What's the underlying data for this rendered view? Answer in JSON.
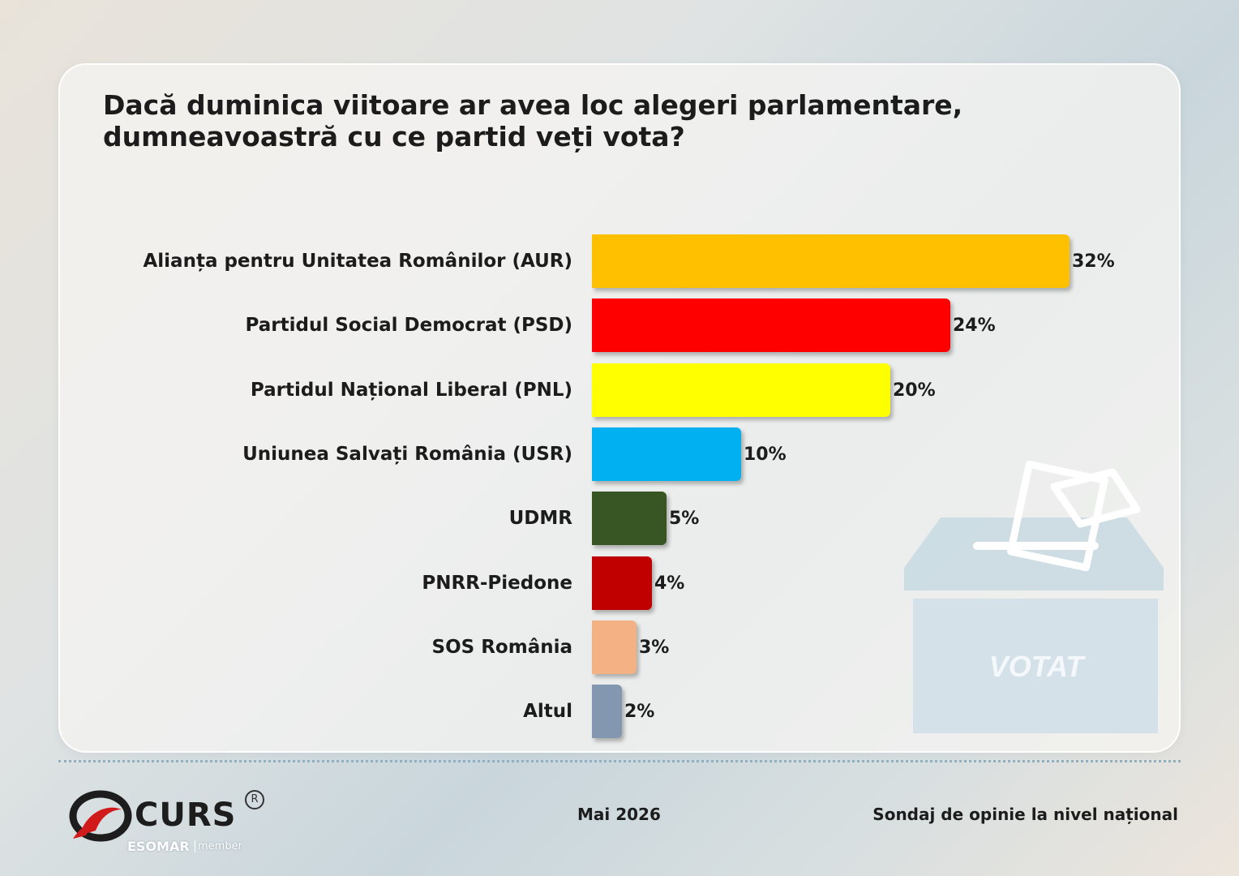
{
  "title_lines": [
    "Dacă duminica viitoare ar avea loc alegeri parlamentare,",
    "dumneavoastră cu ce partid veți vota?"
  ],
  "chart_data": {
    "type": "bar",
    "orientation": "horizontal",
    "title": "Dacă duminica viitoare ar avea loc alegeri parlamentare, dumneavoastră cu ce partid veți vota?",
    "categories": [
      "Alianța pentru Unitatea Românilor (AUR)",
      "Partidul Social Democrat (PSD)",
      "Partidul Național Liberal (PNL)",
      "Uniunea Salvați România (USR)",
      "UDMR",
      "PNRR-Piedone",
      "SOS România",
      "Altul"
    ],
    "values": [
      32,
      24,
      20,
      10,
      5,
      4,
      3,
      2
    ],
    "value_labels": [
      "32%",
      "24%",
      "20%",
      "10%",
      "5%",
      "4%",
      "3%",
      "2%"
    ],
    "colors": [
      "#FFC000",
      "#FF0000",
      "#FFFF00",
      "#00B0F0",
      "#375623",
      "#C00000",
      "#F4B183",
      "#8497B0"
    ],
    "unit": "%",
    "grid": false,
    "legend": "none"
  },
  "ballot_box": {
    "label": "VOTAT"
  },
  "footer": {
    "brand": "CURS",
    "brand_mark": "R",
    "esomar": "ESOMAR",
    "esomar_member": "member",
    "date": "Mai 2026",
    "source": "Sondaj de opinie la nivel național"
  }
}
